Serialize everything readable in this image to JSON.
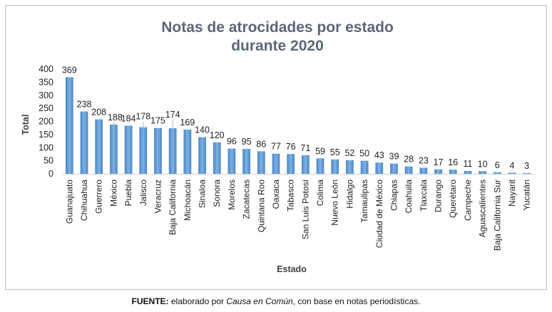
{
  "chart_data": {
    "type": "bar",
    "title_lines": [
      "Notas de atrocidades por estado",
      "durante 2020"
    ],
    "xlabel": "Estado",
    "ylabel": "Total",
    "ylim": [
      0,
      400
    ],
    "yticks": [
      0,
      50,
      100,
      150,
      200,
      250,
      300,
      350,
      400
    ],
    "grid": false,
    "legend": "none",
    "bar_color": "#5b9bd5",
    "categories": [
      "Guanajuato",
      "Chihuahua",
      "Guerrero",
      "México",
      "Puebla",
      "Jalisco",
      "Veracruz",
      "Baja California",
      "Michoacán",
      "Sinaloa",
      "Sonora",
      "Morelos",
      "Zacatecas",
      "Quintana Roo",
      "Oaxaca",
      "Tabasco",
      "San Luis Potosí",
      "Colima",
      "Nuevo León",
      "Hidalgo",
      "Tamaulipas",
      "Ciudad de México",
      "Chiapas",
      "Coahuila",
      "Tlaxcala",
      "Durango",
      "Querétaro",
      "Campeche",
      "Aguascalientes",
      "Baja California Sur",
      "Nayarit",
      "Yucatán"
    ],
    "values": [
      369,
      238,
      208,
      188,
      184,
      178,
      175,
      174,
      169,
      140,
      120,
      96,
      95,
      86,
      77,
      76,
      71,
      59,
      55,
      52,
      50,
      43,
      39,
      28,
      23,
      17,
      16,
      11,
      10,
      6,
      4,
      3
    ]
  },
  "source": {
    "label": "FUENTE:",
    "text_before": " elaborado por ",
    "italic": "Causa en Común",
    "text_after": ", con base en notas periodísticas."
  }
}
